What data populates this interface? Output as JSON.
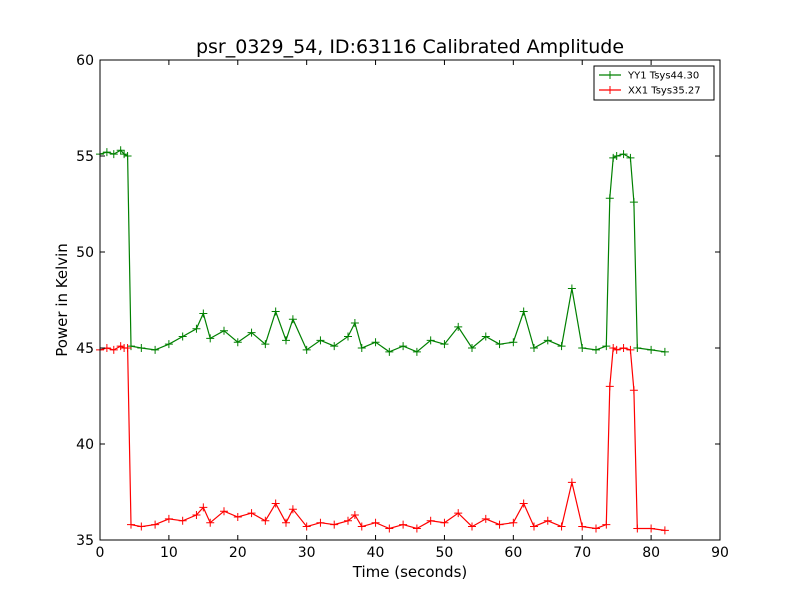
{
  "chart_data": {
    "type": "line",
    "title": "psr_0329_54, ID:63116 Calibrated Amplitude",
    "xlabel": "Time (seconds)",
    "ylabel": "Power in Kelvin",
    "xlim": [
      0,
      90
    ],
    "ylim": [
      35,
      60
    ],
    "xticks": [
      "0",
      "10",
      "20",
      "30",
      "40",
      "50",
      "60",
      "70",
      "80",
      "90"
    ],
    "yticks": [
      "35",
      "40",
      "45",
      "50",
      "55",
      "60"
    ],
    "grid": false,
    "legend_position": "top-right",
    "series": [
      {
        "name": "YY1 Tsys44.30",
        "color": "#008000",
        "marker": "plus",
        "x": [
          0,
          1,
          2,
          3,
          3.5,
          4,
          4.5,
          6,
          8,
          10,
          12,
          14,
          15,
          16,
          18,
          20,
          22,
          24,
          25.5,
          27,
          28,
          30,
          32,
          34,
          36,
          37,
          38,
          40,
          42,
          44,
          46,
          48,
          50,
          52,
          54,
          56,
          58,
          60,
          61.5,
          63,
          65,
          67,
          68.5,
          70,
          72,
          73.5,
          74,
          74.5,
          75,
          76,
          77,
          77.5,
          78,
          80,
          82
        ],
        "y": [
          55.1,
          55.2,
          55.1,
          55.3,
          55.1,
          55.0,
          45.1,
          45.0,
          44.9,
          45.2,
          45.6,
          46.0,
          46.8,
          45.5,
          45.9,
          45.3,
          45.8,
          45.2,
          46.9,
          45.4,
          46.5,
          44.9,
          45.4,
          45.1,
          45.6,
          46.3,
          45.0,
          45.3,
          44.8,
          45.1,
          44.8,
          45.4,
          45.2,
          46.1,
          45.0,
          45.6,
          45.2,
          45.3,
          46.9,
          45.0,
          45.4,
          45.1,
          48.1,
          45.0,
          44.9,
          45.1,
          52.8,
          54.9,
          55.0,
          55.1,
          54.9,
          52.6,
          45.0,
          44.9,
          44.8
        ]
      },
      {
        "name": "XX1 Tsys35.27",
        "color": "#ff0000",
        "marker": "plus",
        "x": [
          0,
          1,
          2,
          3,
          3.5,
          4,
          4.5,
          6,
          8,
          10,
          12,
          14,
          15,
          16,
          18,
          20,
          22,
          24,
          25.5,
          27,
          28,
          30,
          32,
          34,
          36,
          37,
          38,
          40,
          42,
          44,
          46,
          48,
          50,
          52,
          54,
          56,
          58,
          60,
          61.5,
          63,
          65,
          67,
          68.5,
          70,
          72,
          73.5,
          74,
          74.5,
          75,
          76,
          77,
          77.5,
          78,
          80,
          82
        ],
        "y": [
          44.9,
          45.0,
          44.9,
          45.1,
          45.0,
          45.0,
          35.8,
          35.7,
          35.8,
          36.1,
          36.0,
          36.3,
          36.7,
          35.9,
          36.5,
          36.2,
          36.4,
          36.0,
          36.9,
          35.9,
          36.6,
          35.7,
          35.9,
          35.8,
          36.0,
          36.3,
          35.7,
          35.9,
          35.6,
          35.8,
          35.6,
          36.0,
          35.9,
          36.4,
          35.7,
          36.1,
          35.8,
          35.9,
          36.9,
          35.7,
          36.0,
          35.7,
          38.0,
          35.7,
          35.6,
          35.8,
          43.0,
          45.0,
          44.9,
          45.0,
          44.9,
          42.8,
          35.6,
          35.6,
          35.5
        ]
      }
    ]
  }
}
